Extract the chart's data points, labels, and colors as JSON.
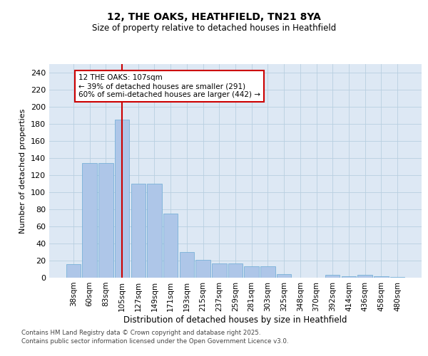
{
  "title": "12, THE OAKS, HEATHFIELD, TN21 8YA",
  "subtitle": "Size of property relative to detached houses in Heathfield",
  "xlabel": "Distribution of detached houses by size in Heathfield",
  "ylabel": "Number of detached properties",
  "categories": [
    "38sqm",
    "60sqm",
    "83sqm",
    "105sqm",
    "127sqm",
    "149sqm",
    "171sqm",
    "193sqm",
    "215sqm",
    "237sqm",
    "259sqm",
    "281sqm",
    "303sqm",
    "325sqm",
    "348sqm",
    "370sqm",
    "392sqm",
    "414sqm",
    "436sqm",
    "458sqm",
    "480sqm"
  ],
  "values": [
    16,
    134,
    134,
    185,
    110,
    110,
    75,
    30,
    21,
    17,
    17,
    13,
    13,
    4,
    0,
    0,
    3,
    2,
    3,
    2,
    1
  ],
  "bar_color": "#aec6e8",
  "bar_edge_color": "#6aaad4",
  "grid_color": "#c8d8e8",
  "background_color": "#dde8f4",
  "property_label": "12 THE OAKS: 107sqm",
  "annotation_line1": "← 39% of detached houses are smaller (291)",
  "annotation_line2": "60% of semi-detached houses are larger (442) →",
  "vline_color": "#cc0000",
  "annotation_box_edge": "#cc0000",
  "footer_line1": "Contains HM Land Registry data © Crown copyright and database right 2025.",
  "footer_line2": "Contains public sector information licensed under the Open Government Licence v3.0.",
  "ylim": [
    0,
    250
  ],
  "yticks": [
    0,
    20,
    40,
    60,
    80,
    100,
    120,
    140,
    160,
    180,
    200,
    220,
    240
  ],
  "vline_x_index": 3
}
